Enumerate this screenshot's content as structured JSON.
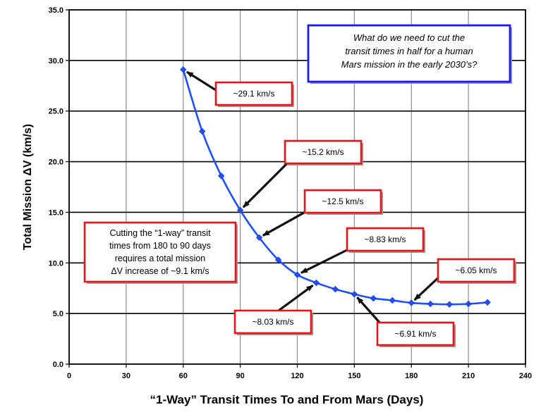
{
  "chart_data": {
    "type": "line",
    "xlabel": "“1-Way” Transit Times To and From Mars (Days)",
    "ylabel": "Total Mission ΔV (km/s)",
    "xlim": [
      0,
      240
    ],
    "ylim": [
      0,
      35
    ],
    "x_ticks": [
      "0",
      "30",
      "60",
      "90",
      "120",
      "150",
      "180",
      "210",
      "240"
    ],
    "y_ticks": [
      "0.0",
      "5.0",
      "10.0",
      "15.0",
      "20.0",
      "25.0",
      "30.0",
      "35.0"
    ],
    "grid": true,
    "series": [
      {
        "color": "#1f4fff",
        "x": [
          60,
          70,
          80,
          90,
          100,
          110,
          120,
          130,
          140,
          150,
          160,
          170,
          180,
          190,
          200,
          210,
          220
        ],
        "values": [
          29.1,
          23.0,
          18.6,
          15.2,
          12.5,
          10.3,
          8.83,
          8.03,
          7.4,
          6.91,
          6.5,
          6.3,
          6.05,
          5.95,
          5.9,
          5.95,
          6.1
        ]
      }
    ],
    "annotations": [
      {
        "text": "~29.1 km/s",
        "x": 60,
        "y": 29.1
      },
      {
        "text": "~15.2 km/s",
        "x": 90,
        "y": 15.2
      },
      {
        "text": "~12.5 km/s",
        "x": 100,
        "y": 12.5
      },
      {
        "text": "~8.83 km/s",
        "x": 120,
        "y": 8.83
      },
      {
        "text": "~6.05 km/s",
        "x": 180,
        "y": 6.05
      },
      {
        "text": "~8.03 km/s",
        "x": 130,
        "y": 8.03
      },
      {
        "text": "~6.91 km/s",
        "x": 150,
        "y": 6.91
      }
    ],
    "question_box": [
      "What do we need to cut the",
      "transit times in half for a human",
      "Mars mission in the early 2030’s?"
    ],
    "note_box": [
      "Cutting the “1-way” transit",
      "times  from 180 to 90 days",
      "requires a total mission",
      "ΔV increase of ~9.1 km/s"
    ],
    "colors": {
      "line": "#1f4fff",
      "callout_border": "#e8141c",
      "question_border": "#1a1aff",
      "arrow": "#111111"
    }
  }
}
